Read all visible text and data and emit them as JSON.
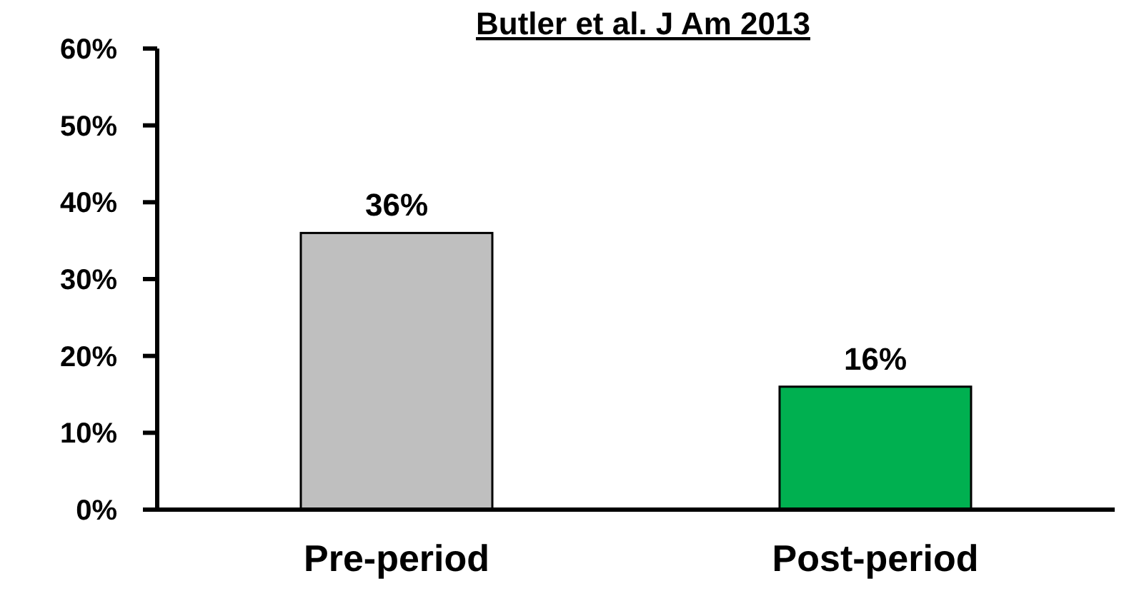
{
  "chart_data": {
    "type": "bar",
    "title": "Butler et al. J Am 2013",
    "categories": [
      "Pre-period",
      "Post-period"
    ],
    "values": [
      36,
      16
    ],
    "colors": [
      "#bfbfbf",
      "#00b050"
    ],
    "ylim": [
      0,
      60
    ],
    "yticks": [
      {
        "value": 0,
        "label": "0%"
      },
      {
        "value": 10,
        "label": "10%"
      },
      {
        "value": 20,
        "label": "20%"
      },
      {
        "value": 30,
        "label": "30%"
      },
      {
        "value": 40,
        "label": "40%"
      },
      {
        "value": 50,
        "label": "50%"
      },
      {
        "value": 60,
        "label": "60%"
      }
    ],
    "data_labels": true,
    "value_labels": [
      "36%",
      "16%"
    ]
  }
}
